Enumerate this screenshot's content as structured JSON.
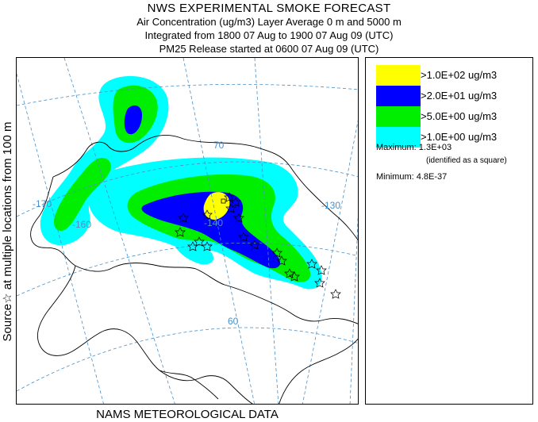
{
  "header": {
    "title": "NWS EXPERIMENTAL SMOKE FORECAST",
    "line1": "Air Concentration (ug/m3) Layer Average    0 m and  5000 m",
    "line2": "Integrated from 1800 07 Aug to 1900 07 Aug 09 (UTC)",
    "line3": "PM25 Release started at 0600 07 Aug 09 (UTC)"
  },
  "side_label": "Source☆  at multiple locations   from   100 m",
  "footer": "NAMS METEOROLOGICAL DATA",
  "map": {
    "longitude_labels": [
      "-170",
      "-160",
      "-140",
      "-130"
    ],
    "latitude_labels": [
      "70",
      "60"
    ],
    "colors": {
      "level1": "#00ffff",
      "level2": "#00ee00",
      "level3": "#0000ff",
      "level4": "#ffff00",
      "coast": "#000000",
      "grid": "#4a90c8"
    }
  },
  "legend": {
    "items": [
      {
        "label": ">1.0E+02 ug/m3",
        "color": "#ffff00"
      },
      {
        "label": ">2.0E+01 ug/m3",
        "color": "#0000ff"
      },
      {
        "label": ">5.0E+00 ug/m3",
        "color": "#00ee00"
      },
      {
        "label": ">1.0E+00 ug/m3",
        "color": "#00ffff"
      }
    ],
    "maximum": "Maximum: 1.3E+03",
    "maximum_note": "(identified as a square)",
    "minimum": "Minimum: 4.8E-37"
  }
}
